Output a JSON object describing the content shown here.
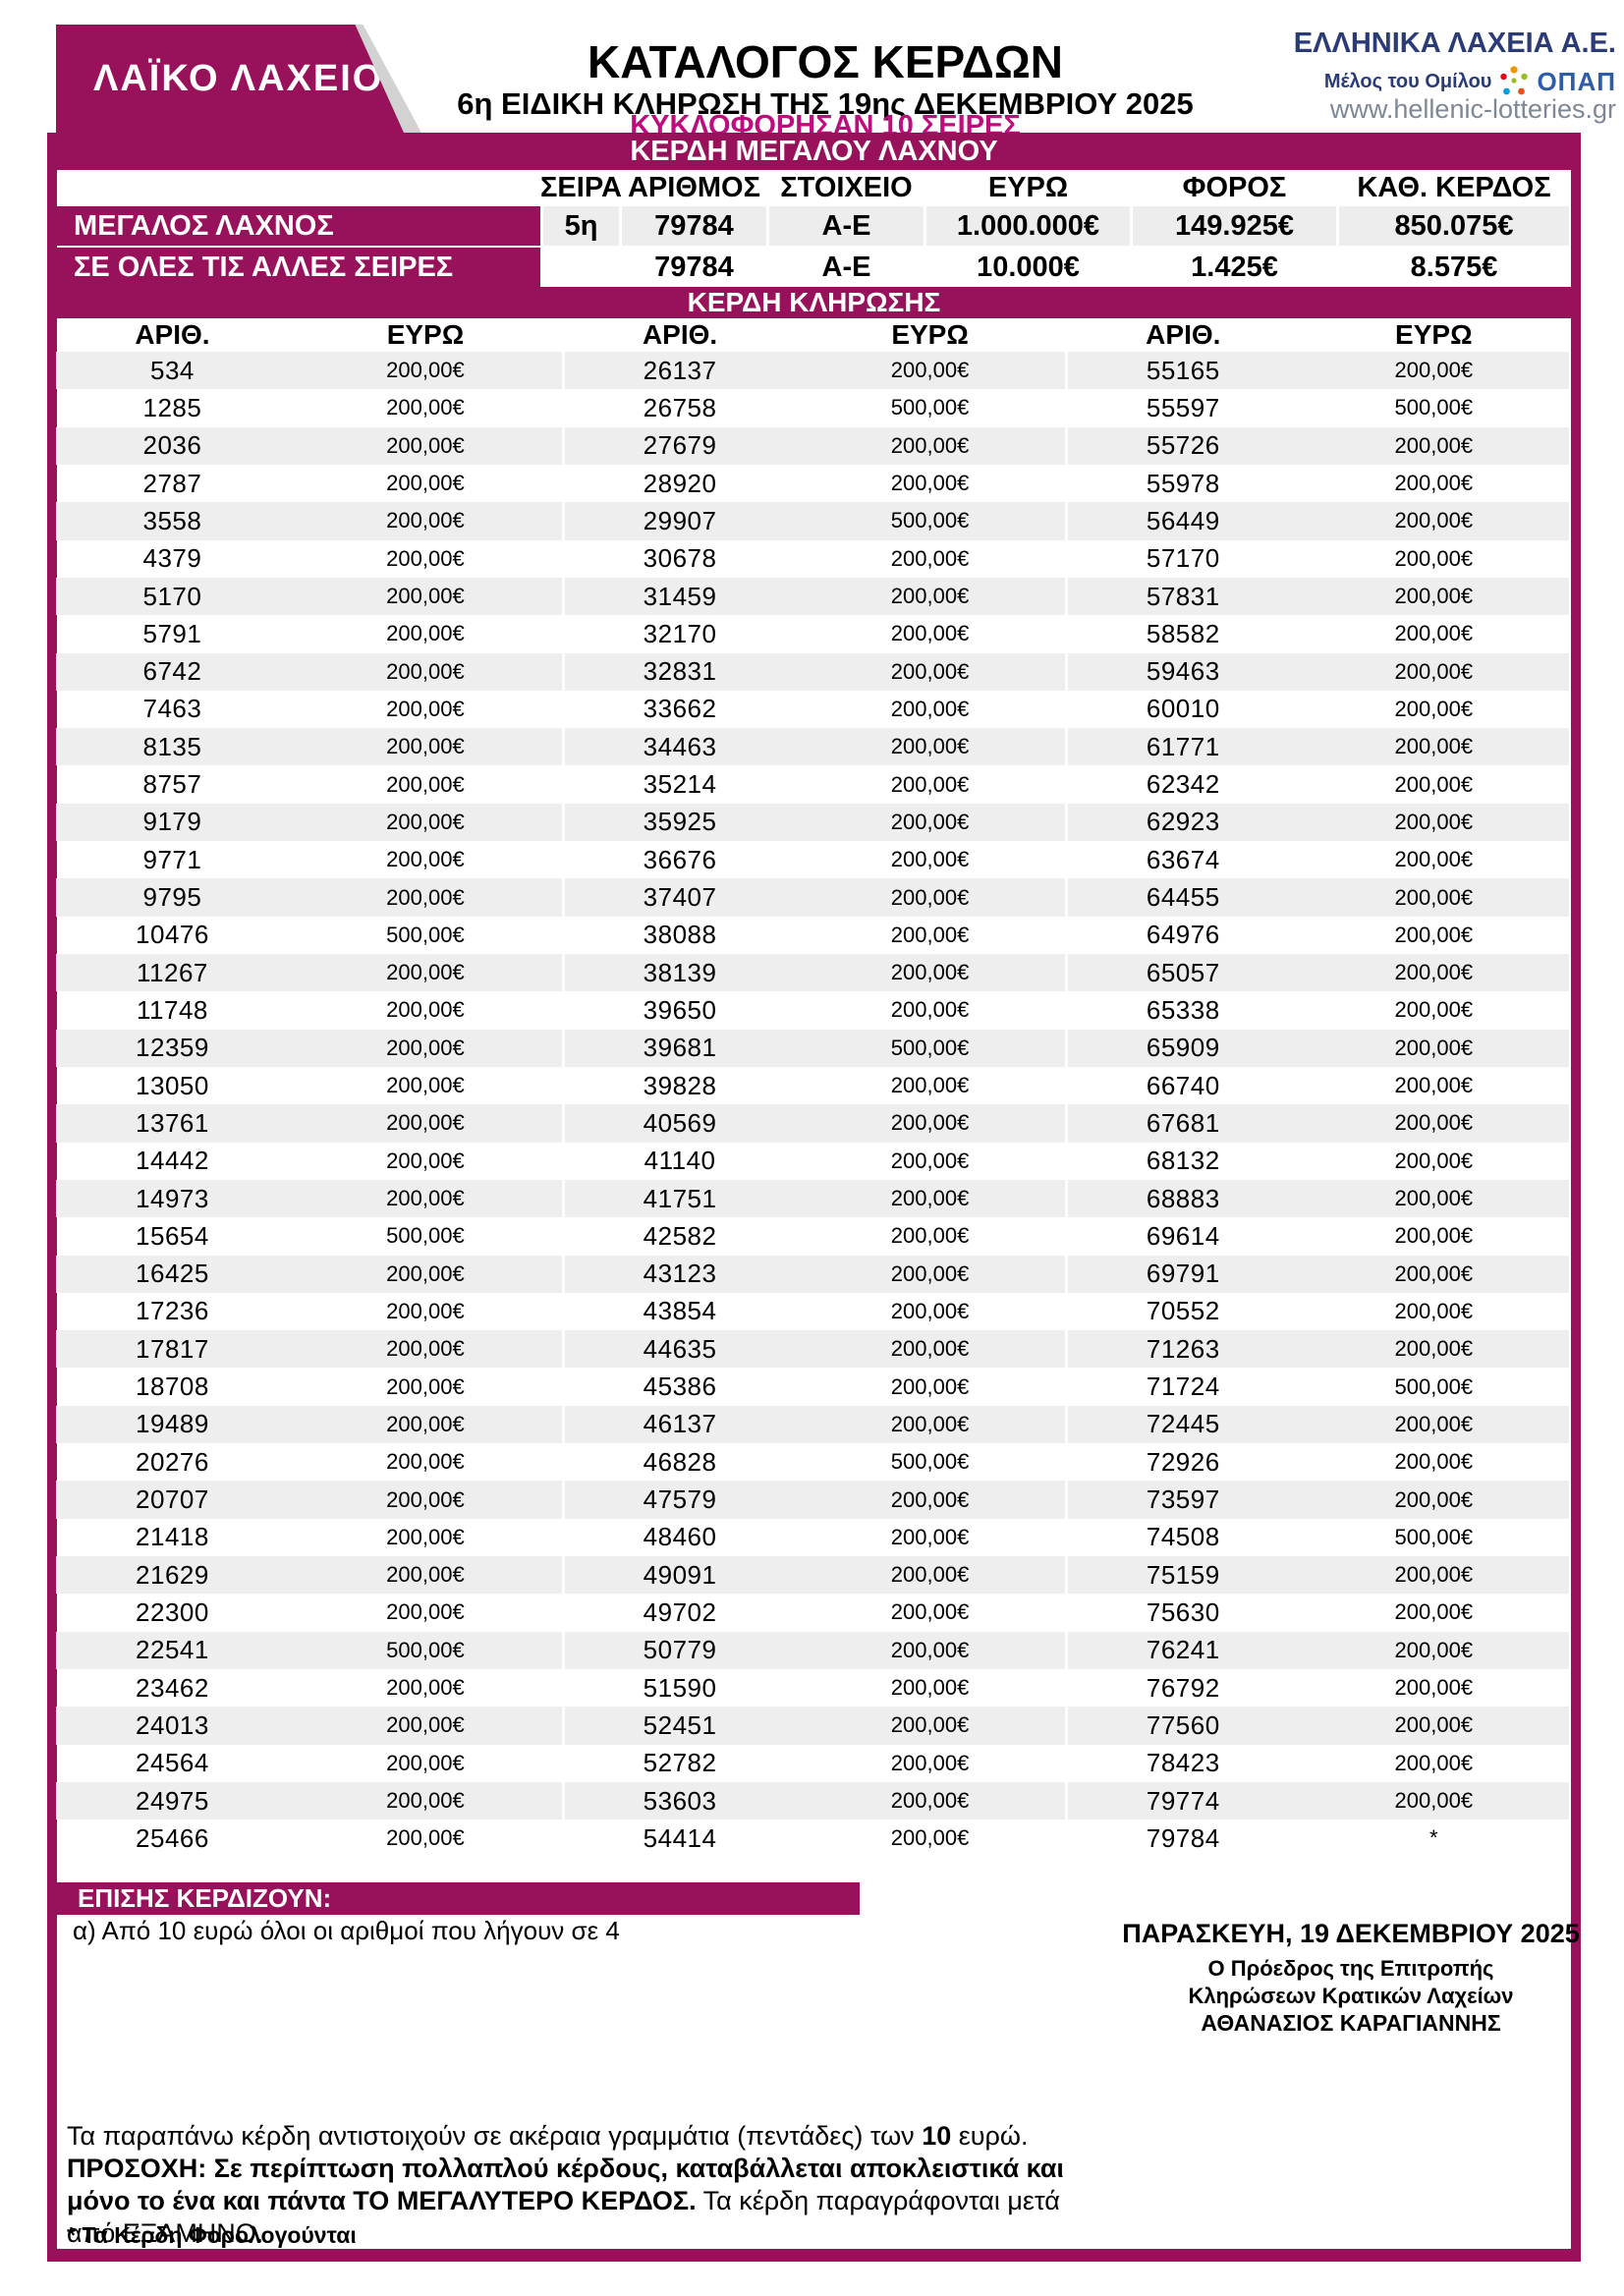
{
  "colors": {
    "purple": "#98125b",
    "magenta": "#be0c7e",
    "navy": "#2b3b77",
    "stripe": "#eeeeee",
    "opap_blue": "#2d5ca8",
    "web_gray": "#7e8894"
  },
  "header": {
    "logo_text": "ΛΑΪΚΟ ΛΑΧΕΙΟ",
    "title": "ΚΑΤΑΛΟΓΟΣ ΚΕΡΔΩΝ",
    "subtitle": "6η ΕΙΔΙΚΗ ΚΛΗΡΩΣΗ ΤΗΣ 19ης ΔΕΚΕΜΒΡΙΟΥ 2025",
    "series_note": "ΚΥΚΛΟΦΟΡΗΣΑΝ 10 ΣΕΙΡΕΣ",
    "company": {
      "name": "ΕΛΛΗΝΙΚΑ ΛΑΧΕΙΑ Α.Ε.",
      "member_text": "Μέλος του Ομίλου",
      "opap_word": "ΟΠΑΠ",
      "website": "www.hellenic-lotteries.gr"
    }
  },
  "grand_prize": {
    "band_title": "ΚΕΡΔΗ ΜΕΓΑΛΟΥ ΛΑΧΝΟΥ",
    "columns": {
      "seira": "ΣΕΙΡΑ",
      "arithmos": "ΑΡΙΘΜΟΣ",
      "stoixeio": "ΣΤΟΙΧΕΙΟ",
      "euro": "ΕΥΡΩ",
      "foros": "ΦΟΡΟΣ",
      "kath": "ΚΑΘ. ΚΕΡΔΟΣ"
    },
    "rows": [
      {
        "label": "ΜΕΓΑΛΟΣ ΛΑΧΝΟΣ",
        "seira": "5η",
        "arithmos": "79784",
        "stoixeio": "Α-Ε",
        "euro": "1.000.000€",
        "foros": "149.925€",
        "kath": "850.075€"
      },
      {
        "label": "ΣΕ ΟΛΕΣ ΤΙΣ ΑΛΛΕΣ ΣΕΙΡΕΣ",
        "seira": "",
        "arithmos": "79784",
        "stoixeio": "Α-Ε",
        "euro": "10.000€",
        "foros": "1.425€",
        "kath": "8.575€"
      }
    ]
  },
  "draw_prizes": {
    "band_title": "ΚΕΡΔΗ ΚΛΗΡΩΣΗΣ",
    "col_headers": {
      "num": "ΑΡΙΘ.",
      "euro": "ΕΥΡΩ"
    },
    "groups": [
      [
        [
          "534",
          "200,00€"
        ],
        [
          "1285",
          "200,00€"
        ],
        [
          "2036",
          "200,00€"
        ],
        [
          "2787",
          "200,00€"
        ],
        [
          "3558",
          "200,00€"
        ],
        [
          "4379",
          "200,00€"
        ],
        [
          "5170",
          "200,00€"
        ],
        [
          "5791",
          "200,00€"
        ],
        [
          "6742",
          "200,00€"
        ],
        [
          "7463",
          "200,00€"
        ],
        [
          "8135",
          "200,00€"
        ],
        [
          "8757",
          "200,00€"
        ],
        [
          "9179",
          "200,00€"
        ],
        [
          "9771",
          "200,00€"
        ],
        [
          "9795",
          "200,00€"
        ],
        [
          "10476",
          "500,00€"
        ],
        [
          "11267",
          "200,00€"
        ],
        [
          "11748",
          "200,00€"
        ],
        [
          "12359",
          "200,00€"
        ],
        [
          "13050",
          "200,00€"
        ],
        [
          "13761",
          "200,00€"
        ],
        [
          "14442",
          "200,00€"
        ],
        [
          "14973",
          "200,00€"
        ],
        [
          "15654",
          "500,00€"
        ],
        [
          "16425",
          "200,00€"
        ],
        [
          "17236",
          "200,00€"
        ],
        [
          "17817",
          "200,00€"
        ],
        [
          "18708",
          "200,00€"
        ],
        [
          "19489",
          "200,00€"
        ],
        [
          "20276",
          "200,00€"
        ],
        [
          "20707",
          "200,00€"
        ],
        [
          "21418",
          "200,00€"
        ],
        [
          "21629",
          "200,00€"
        ],
        [
          "22300",
          "200,00€"
        ],
        [
          "22541",
          "500,00€"
        ],
        [
          "23462",
          "200,00€"
        ],
        [
          "24013",
          "200,00€"
        ],
        [
          "24564",
          "200,00€"
        ],
        [
          "24975",
          "200,00€"
        ],
        [
          "25466",
          "200,00€"
        ]
      ],
      [
        [
          "26137",
          "200,00€"
        ],
        [
          "26758",
          "500,00€"
        ],
        [
          "27679",
          "200,00€"
        ],
        [
          "28920",
          "200,00€"
        ],
        [
          "29907",
          "500,00€"
        ],
        [
          "30678",
          "200,00€"
        ],
        [
          "31459",
          "200,00€"
        ],
        [
          "32170",
          "200,00€"
        ],
        [
          "32831",
          "200,00€"
        ],
        [
          "33662",
          "200,00€"
        ],
        [
          "34463",
          "200,00€"
        ],
        [
          "35214",
          "200,00€"
        ],
        [
          "35925",
          "200,00€"
        ],
        [
          "36676",
          "200,00€"
        ],
        [
          "37407",
          "200,00€"
        ],
        [
          "38088",
          "200,00€"
        ],
        [
          "38139",
          "200,00€"
        ],
        [
          "39650",
          "200,00€"
        ],
        [
          "39681",
          "500,00€"
        ],
        [
          "39828",
          "200,00€"
        ],
        [
          "40569",
          "200,00€"
        ],
        [
          "41140",
          "200,00€"
        ],
        [
          "41751",
          "200,00€"
        ],
        [
          "42582",
          "200,00€"
        ],
        [
          "43123",
          "200,00€"
        ],
        [
          "43854",
          "200,00€"
        ],
        [
          "44635",
          "200,00€"
        ],
        [
          "45386",
          "200,00€"
        ],
        [
          "46137",
          "200,00€"
        ],
        [
          "46828",
          "500,00€"
        ],
        [
          "47579",
          "200,00€"
        ],
        [
          "48460",
          "200,00€"
        ],
        [
          "49091",
          "200,00€"
        ],
        [
          "49702",
          "200,00€"
        ],
        [
          "50779",
          "200,00€"
        ],
        [
          "51590",
          "200,00€"
        ],
        [
          "52451",
          "200,00€"
        ],
        [
          "52782",
          "200,00€"
        ],
        [
          "53603",
          "200,00€"
        ],
        [
          "54414",
          "200,00€"
        ]
      ],
      [
        [
          "55165",
          "200,00€"
        ],
        [
          "55597",
          "500,00€"
        ],
        [
          "55726",
          "200,00€"
        ],
        [
          "55978",
          "200,00€"
        ],
        [
          "56449",
          "200,00€"
        ],
        [
          "57170",
          "200,00€"
        ],
        [
          "57831",
          "200,00€"
        ],
        [
          "58582",
          "200,00€"
        ],
        [
          "59463",
          "200,00€"
        ],
        [
          "60010",
          "200,00€"
        ],
        [
          "61771",
          "200,00€"
        ],
        [
          "62342",
          "200,00€"
        ],
        [
          "62923",
          "200,00€"
        ],
        [
          "63674",
          "200,00€"
        ],
        [
          "64455",
          "200,00€"
        ],
        [
          "64976",
          "200,00€"
        ],
        [
          "65057",
          "200,00€"
        ],
        [
          "65338",
          "200,00€"
        ],
        [
          "65909",
          "200,00€"
        ],
        [
          "66740",
          "200,00€"
        ],
        [
          "67681",
          "200,00€"
        ],
        [
          "68132",
          "200,00€"
        ],
        [
          "68883",
          "200,00€"
        ],
        [
          "69614",
          "200,00€"
        ],
        [
          "69791",
          "200,00€"
        ],
        [
          "70552",
          "200,00€"
        ],
        [
          "71263",
          "200,00€"
        ],
        [
          "71724",
          "500,00€"
        ],
        [
          "72445",
          "200,00€"
        ],
        [
          "72926",
          "200,00€"
        ],
        [
          "73597",
          "200,00€"
        ],
        [
          "74508",
          "500,00€"
        ],
        [
          "75159",
          "200,00€"
        ],
        [
          "75630",
          "200,00€"
        ],
        [
          "76241",
          "200,00€"
        ],
        [
          "76792",
          "200,00€"
        ],
        [
          "77560",
          "200,00€"
        ],
        [
          "78423",
          "200,00€"
        ],
        [
          "79774",
          "200,00€"
        ],
        [
          "79784",
          "*"
        ]
      ]
    ]
  },
  "also_win": {
    "band_title": "ΕΠΙΣΗΣ ΚΕΡΔΙΖΟΥΝ:",
    "text": "α) Από 10 ευρώ όλοι οι αριθμοί που λήγουν σε 4"
  },
  "signature": {
    "date": "ΠΑΡΑΣΚΕΥΗ, 19 ΔΕΚΕΜΒΡΙΟΥ 2025",
    "line1": "Ο Πρόεδρος της Επιτροπής",
    "line2": "Κληρώσεων Κρατικών Λαχείων",
    "name": "ΑΘΑΝΑΣΙΟΣ ΚΑΡΑΓΙΑΝΝΗΣ"
  },
  "footer": {
    "paragraph": [
      {
        "t": "Τα παραπάνω κέρδη αντιστοιχούν σε ακέραια γραμμάτια (πεντάδες) των ",
        "b": false
      },
      {
        "t": "10",
        "b": true
      },
      {
        "t": " ευρώ. ",
        "b": false
      },
      {
        "t": "ΠΡΟΣΟΧΗ: Σε περίπτωση πολλαπλού κέρδους, καταβάλλεται αποκλειστικά και μόνο το ένα και πάντα ΤΟ ΜΕΓΑΛΥΤΕΡΟ ΚΕΡΔΟΣ.",
        "b": true
      },
      {
        "t": " Τα κέρδη παραγράφονται μετά από ΕΞΑΜΗΝΟ.",
        "b": false
      }
    ],
    "note": "* Τα Κέρδη Φορολογούνται"
  }
}
